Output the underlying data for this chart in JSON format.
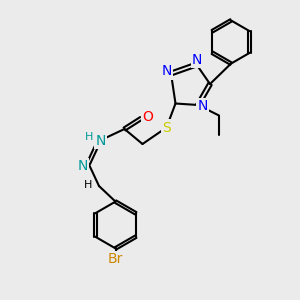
{
  "bg_color": "#ebebeb",
  "atom_colors": {
    "N": "#0000ff",
    "S": "#cccc00",
    "O": "#ff0000",
    "Br": "#cc8800",
    "H_teal": "#009999",
    "C": "#000000"
  },
  "bond_color": "#000000",
  "bond_width": 1.5,
  "font_size_atoms": 10,
  "font_size_small": 8
}
